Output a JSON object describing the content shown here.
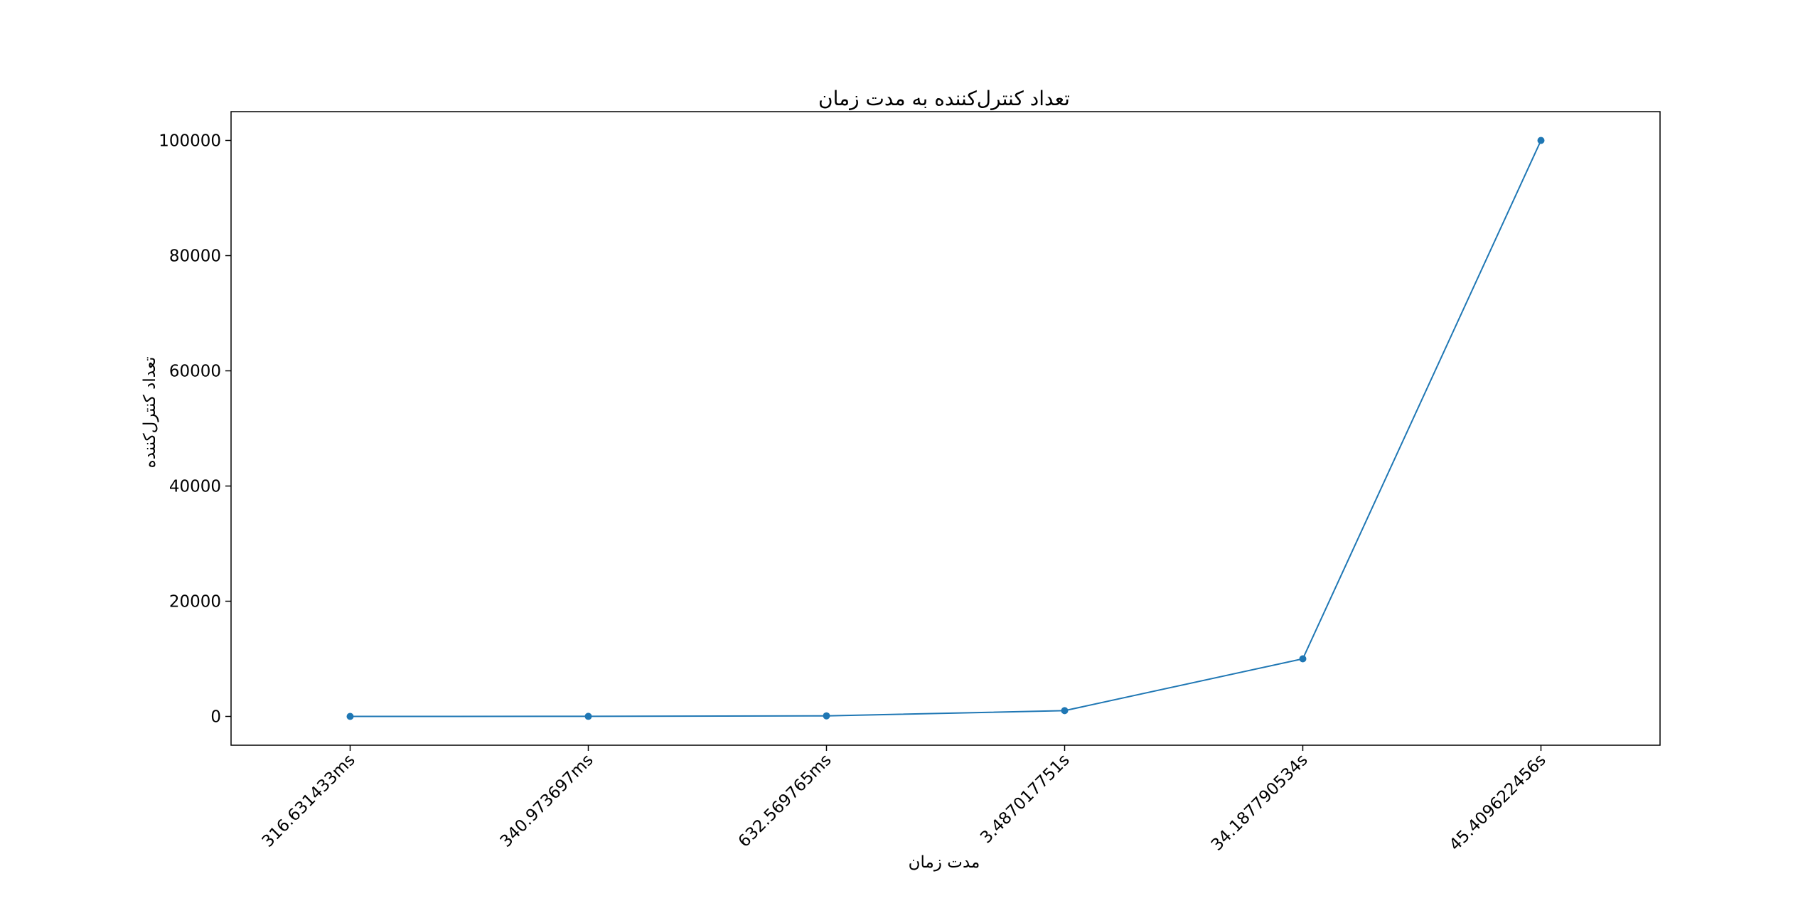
{
  "chart_data": {
    "type": "line",
    "title": "تعداد کنترل‌کننده به مدت زمان",
    "xlabel": "مدت زمان",
    "ylabel": "تعداد کنترل‌کننده",
    "categories": [
      "316.631433ms",
      "340.973697ms",
      "632.569765ms",
      "3.487017751s",
      "34.187790534s",
      "45.409622456s"
    ],
    "series": [
      {
        "values": [
          1,
          10,
          100,
          1000,
          10000,
          100000
        ]
      }
    ],
    "ylim": [
      -5000,
      105000
    ],
    "yticks": [
      0,
      20000,
      40000,
      60000,
      80000,
      100000
    ],
    "grid": false,
    "line_color": "#1f77b4"
  }
}
